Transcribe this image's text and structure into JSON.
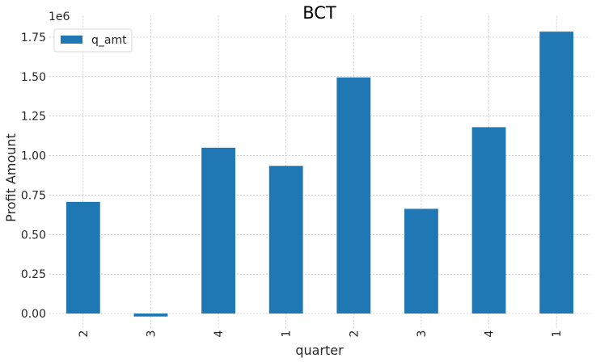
{
  "chart_data": {
    "type": "bar",
    "title": "BCT",
    "xlabel": "quarter",
    "ylabel": "Profit Amount",
    "y_offset_label": "1e6",
    "categories": [
      "2",
      "3",
      "4",
      "1",
      "2",
      "3",
      "4",
      "1"
    ],
    "series": [
      {
        "name": "q_amt",
        "color": "#1f77b4",
        "values": [
          707000,
          -19000,
          1050000,
          935000,
          1495000,
          663000,
          1180000,
          1785000
        ]
      }
    ],
    "yticks": [
      0.0,
      250000,
      500000,
      750000,
      1000000,
      1250000,
      1500000,
      1750000
    ],
    "ytick_labels": [
      "0.00",
      "0.25",
      "0.50",
      "0.75",
      "1.00",
      "1.25",
      "1.50",
      "1.75"
    ],
    "ylim": [
      -100000,
      1885000
    ],
    "grid": true,
    "legend": "top-left"
  }
}
